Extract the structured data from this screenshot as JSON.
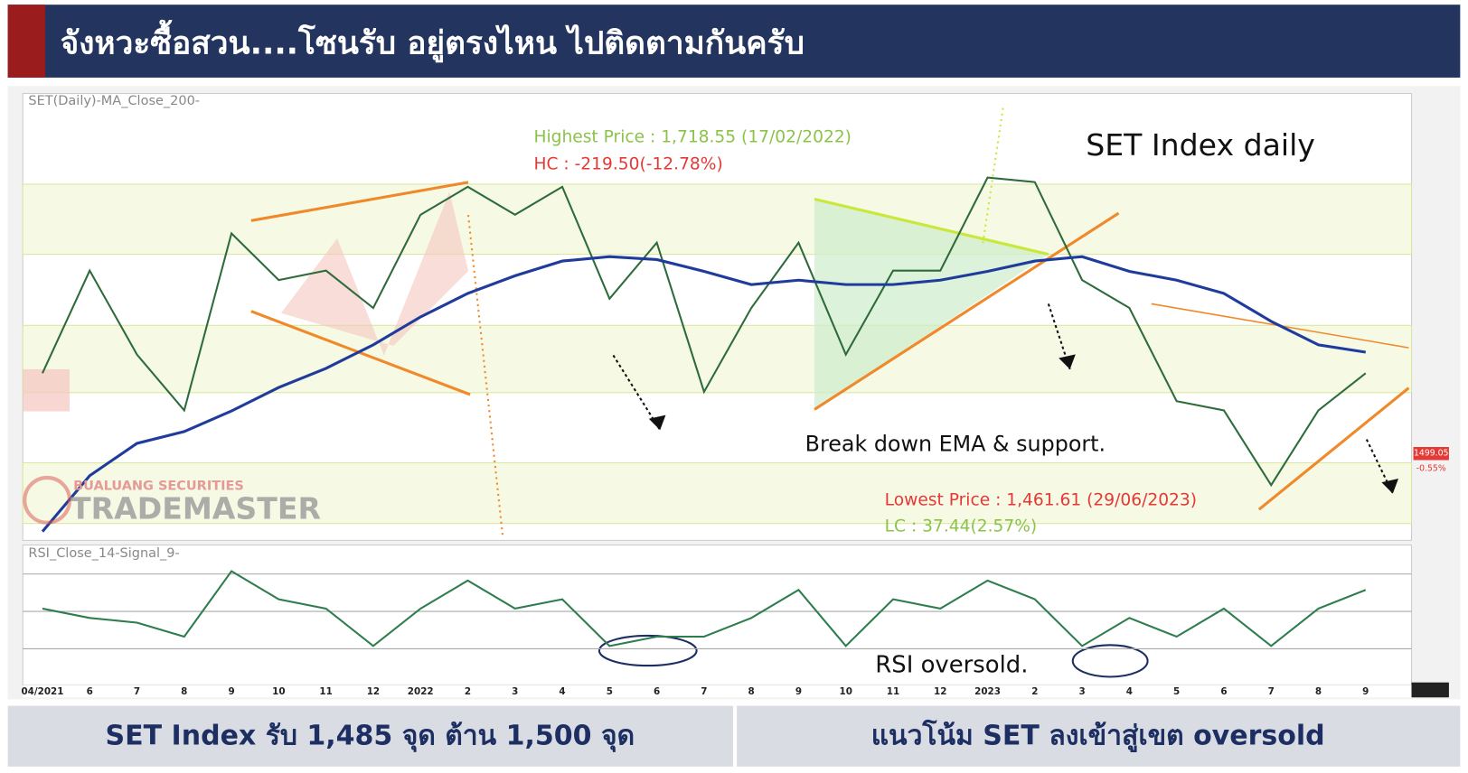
{
  "header": {
    "title": "จังหวะซื้อสวน....โซนรับ อยู่ตรงไหน ไปติดตามกันครับ"
  },
  "chart_data": {
    "type": "line",
    "categories": [
      "04/2021",
      "6",
      "7",
      "8",
      "9",
      "10",
      "11",
      "12",
      "2022",
      "2",
      "3",
      "4",
      "5",
      "6",
      "7",
      "8",
      "9",
      "10",
      "11",
      "12",
      "2023",
      "2",
      "3",
      "4",
      "5",
      "6",
      "7",
      "8",
      "9"
    ],
    "series": [
      {
        "color": "#2e6b3a",
        "values": [
          1553.7,
          1623.5,
          1566.4,
          1528.4,
          1648.8,
          1617.1,
          1623.5,
          1598.1,
          1661.5,
          1680.5,
          1661.5,
          1680.5,
          1604.4,
          1642.5,
          1541.0,
          1598.1,
          1642.5,
          1566.4,
          1623.5,
          1623.5,
          1686.8,
          1683.7,
          1617.1,
          1598.1,
          1534.7,
          1528.4,
          1477.6,
          1528.4,
          1553.7
        ]
      },
      {
        "name": "SET(Daily)-MA_Close_200-",
        "color": "#1f3c9c",
        "values": [
          1446,
          1484,
          1506,
          1514,
          1528,
          1544,
          1557,
          1573,
          1592,
          1608,
          1620,
          1630,
          1633,
          1631,
          1623,
          1614,
          1617,
          1614,
          1614,
          1617,
          1623,
          1630,
          1633,
          1623,
          1617,
          1608,
          1589,
          1573,
          1568
        ]
      },
      {
        "name": "RSI_Close_14-Signal_9-",
        "color": "#2e7d4f",
        "axis": "y2",
        "values": [
          51.5,
          46.5,
          44,
          36.5,
          71.5,
          56.5,
          51.5,
          31.5,
          51.5,
          66.5,
          51.5,
          56.5,
          31.5,
          36.5,
          36.5,
          46.5,
          61.5,
          31.5,
          56.5,
          51.5,
          66.5,
          56.5,
          31.5,
          46.5,
          36.5,
          51.5,
          31.5,
          51.5,
          61.5
        ]
      }
    ],
    "ylim": [
      1440,
      1744
    ],
    "y2lim": [
      12,
      78
    ],
    "y2ticks": [
      30,
      50,
      70
    ],
    "last_price": {
      "value": 1499.05,
      "label": "1499.05"
    },
    "last_change": "-0.55%",
    "annotations": [
      {
        "text": "Highest Price : 1,718.55 (17/02/2022)",
        "color": "#8bc34a"
      },
      {
        "text": "HC : -219.50(-12.78%)",
        "color": "#e53935"
      },
      {
        "text": "SET Index daily",
        "color": "#111111"
      },
      {
        "text": "Break down EMA & support.",
        "color": "#111111"
      },
      {
        "text": "Lowest Price : 1,461.61 (29/06/2023)",
        "color": "#e53935"
      },
      {
        "text": "LC : 37.44(2.57%)",
        "color": "#8bc34a"
      },
      {
        "text": "RSI oversold.",
        "color": "#111111"
      }
    ],
    "watermark": [
      "BUALUANG SECURITIES",
      "TRADEMASTER"
    ]
  },
  "footer": {
    "left": "SET Index รับ 1,485 จุด ต้าน 1,500 จุด",
    "right": "แนวโน้ม SET ลงเข้าสู่เขต oversold"
  }
}
